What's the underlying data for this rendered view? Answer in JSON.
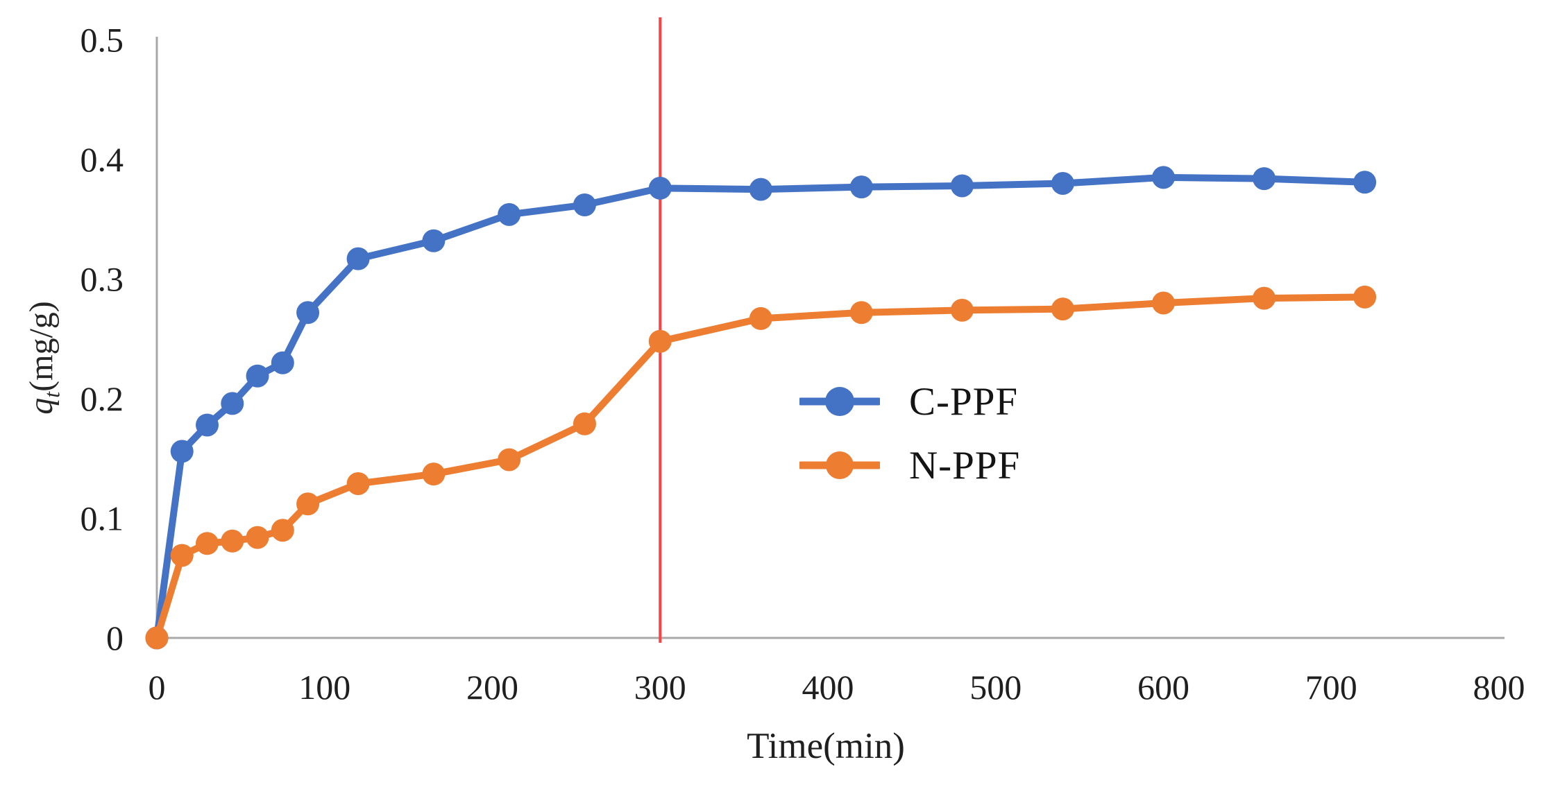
{
  "figure": {
    "background": "#ffffff",
    "axis_color": "#a8a8a8",
    "text_color": "#1f1f1f"
  },
  "chart_data": {
    "type": "line",
    "title": "",
    "xlabel": "Time(min)",
    "ylabel": "qt(mg/g)",
    "ylabel_parts": {
      "symbol": "q",
      "subscript": "t",
      "units": "(mg/g)"
    },
    "xlim": [
      0,
      800
    ],
    "ylim": [
      0,
      0.5
    ],
    "grid": false,
    "x_ticks": [
      0,
      100,
      200,
      300,
      400,
      500,
      600,
      700,
      800
    ],
    "y_ticks": [
      "0",
      "0.1",
      "0.2",
      "0.3",
      "0.4",
      "0.5"
    ],
    "y_tick_values": [
      0,
      0.1,
      0.2,
      0.3,
      0.4,
      0.5
    ],
    "legend_position": "center-right",
    "marker_line": {
      "x": 300,
      "color": "#fb4343"
    },
    "x": [
      0,
      15,
      30,
      45,
      60,
      75,
      90,
      120,
      165,
      210,
      255,
      300,
      360,
      420,
      480,
      540,
      600,
      660,
      720
    ],
    "series": [
      {
        "name": "C-PPF",
        "color": "#4472c4",
        "values": [
          0,
          0.156,
          0.178,
          0.196,
          0.219,
          0.23,
          0.272,
          0.317,
          0.332,
          0.354,
          0.362,
          0.376,
          0.375,
          0.377,
          0.378,
          0.38,
          0.385,
          0.384,
          0.381
        ]
      },
      {
        "name": "N-PPF",
        "color": "#ed7d31",
        "values": [
          0,
          0.069,
          0.079,
          0.081,
          0.084,
          0.09,
          0.112,
          0.129,
          0.137,
          0.149,
          0.179,
          0.248,
          0.267,
          0.272,
          0.274,
          0.275,
          0.28,
          0.284,
          0.285
        ]
      }
    ]
  }
}
